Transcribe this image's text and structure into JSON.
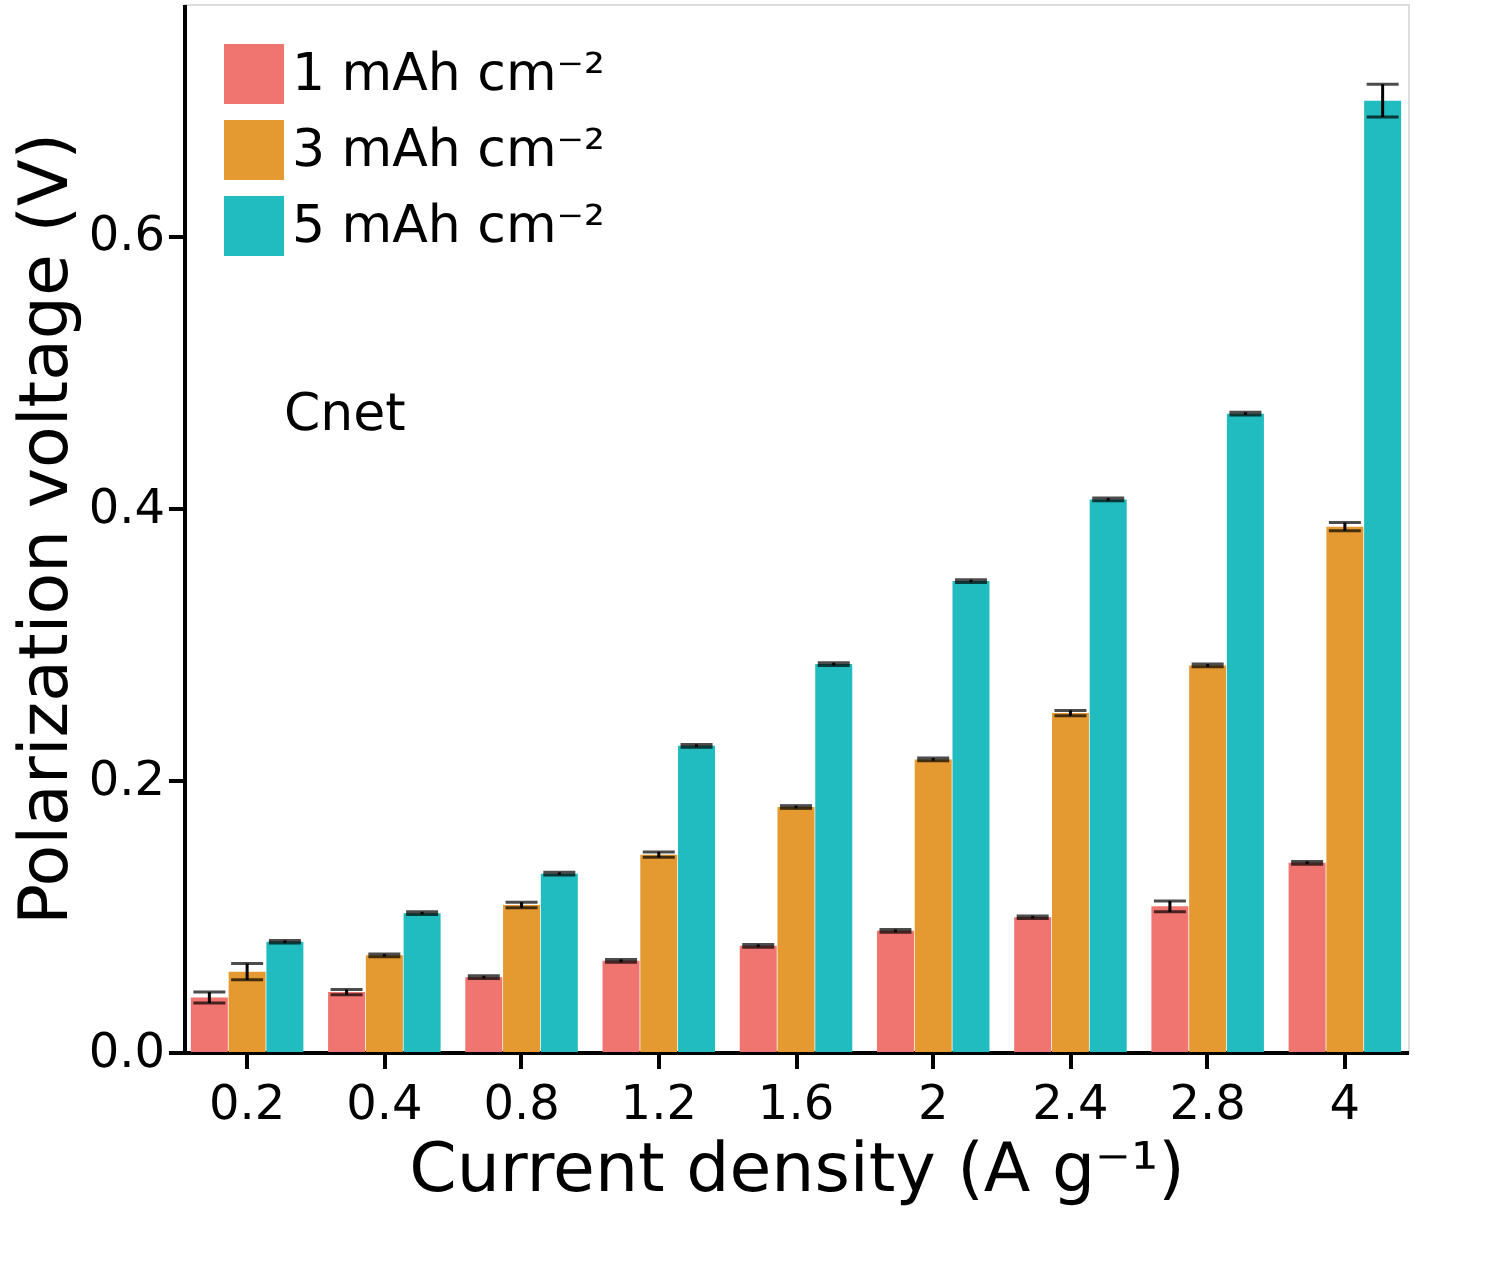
{
  "chart_data": {
    "type": "bar",
    "xlabel": "Current density (A g⁻¹)",
    "ylabel": "Polarization voltage (V)",
    "categories": [
      "0.2",
      "0.4",
      "0.8",
      "1.2",
      "1.6",
      "2",
      "2.4",
      "2.8",
      "4"
    ],
    "series": [
      {
        "name": "1 mAh cm⁻²",
        "color": "#f07470",
        "values": [
          0.04,
          0.044,
          0.055,
          0.067,
          0.078,
          0.089,
          0.099,
          0.107,
          0.139
        ],
        "errors": [
          0.004,
          0.002,
          0.001,
          0.001,
          0.001,
          0.001,
          0.001,
          0.004,
          0.001
        ]
      },
      {
        "name": "3 mAh cm⁻²",
        "color": "#e49a30",
        "values": [
          0.059,
          0.071,
          0.108,
          0.145,
          0.18,
          0.215,
          0.249,
          0.284,
          0.386
        ],
        "errors": [
          0.006,
          0.001,
          0.002,
          0.002,
          0.001,
          0.001,
          0.002,
          0.001,
          0.003
        ]
      },
      {
        "name": "5 mAh cm⁻²",
        "color": "#20bcc0",
        "values": [
          0.081,
          0.102,
          0.131,
          0.225,
          0.285,
          0.346,
          0.406,
          0.469,
          0.699
        ],
        "errors": [
          0.001,
          0.001,
          0.001,
          0.001,
          0.001,
          0.001,
          0.001,
          0.001,
          0.012
        ]
      }
    ],
    "ylim": [
      0,
      0.77
    ],
    "yticks": [
      {
        "value": 0,
        "label": "0.0"
      },
      0.2,
      0.4,
      0.6
    ],
    "legend": "top left",
    "grid": false,
    "annotations": [
      "Cnet"
    ]
  }
}
